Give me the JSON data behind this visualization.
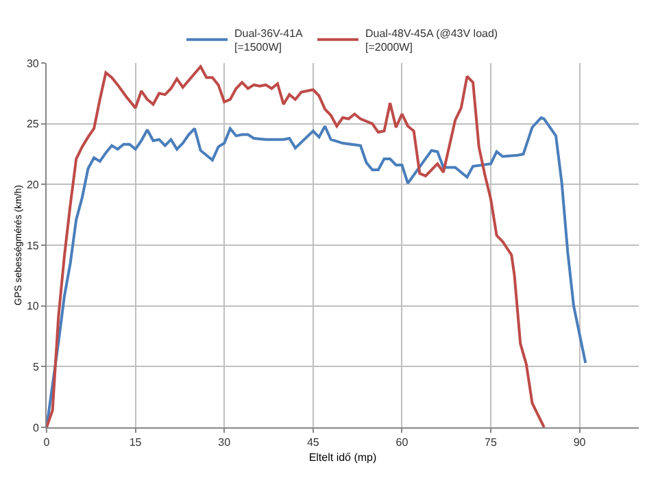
{
  "chart_data": {
    "type": "line",
    "xlabel": "Eltelt idő (mp)",
    "ylabel": "GPS sebességmérés (km/h)",
    "xlim": [
      0,
      100
    ],
    "xticks": [
      0,
      15,
      30,
      45,
      60,
      75,
      90
    ],
    "ylim": [
      0,
      30
    ],
    "yticks": [
      0,
      5,
      10,
      15,
      20,
      25,
      30
    ],
    "grid": true,
    "legend": "top",
    "marker": "none",
    "line_style": "solid",
    "series": [
      {
        "name": "Dual-36V-41A\n[=1500W]",
        "color": "#4a7ebb",
        "x": [
          0,
          1,
          2,
          3,
          4,
          5,
          6,
          7,
          8,
          9,
          10,
          11,
          12,
          13,
          14,
          15,
          16,
          17,
          18,
          19,
          20,
          21,
          22,
          23,
          24,
          25,
          26,
          28,
          29,
          30,
          31,
          32,
          33,
          34,
          35,
          37,
          40,
          41,
          42,
          45,
          46,
          47,
          48,
          50,
          53,
          54,
          55,
          56,
          57,
          58,
          59,
          60,
          61,
          65,
          66,
          67,
          69,
          71,
          72,
          75,
          76,
          77,
          79.5,
          80.5,
          82,
          83.5,
          84,
          86,
          87,
          88,
          89,
          91
        ],
        "values": [
          0,
          3.5,
          7,
          10.8,
          13.5,
          17.1,
          18.9,
          21.3,
          22.2,
          21.9,
          22.6,
          23.2,
          22.9,
          23.3,
          23.3,
          22.9,
          23.6,
          24.5,
          23.6,
          23.7,
          23.2,
          23.7,
          22.9,
          23.4,
          24.1,
          24.6,
          22.8,
          22.0,
          23.1,
          23.4,
          24.6,
          24.0,
          24.1,
          24.1,
          23.8,
          23.7,
          23.7,
          23.8,
          23.0,
          24.4,
          23.9,
          24.8,
          23.7,
          23.4,
          23.2,
          21.8,
          21.2,
          21.2,
          22.1,
          22.1,
          21.6,
          21.6,
          20.1,
          22.8,
          22.7,
          21.4,
          21.4,
          20.6,
          21.5,
          21.7,
          22.7,
          22.3,
          22.4,
          22.5,
          24.7,
          25.5,
          25.4,
          24.0,
          20.1,
          14.4,
          10.0,
          5.3
        ]
      },
      {
        "name": "Dual-48V-45A (@43V load)\n[=2000W]",
        "color": "#be4b48",
        "x": [
          0,
          1,
          2,
          3,
          4,
          5,
          6,
          7,
          8,
          9,
          10,
          11,
          12,
          13.5,
          15,
          16,
          17,
          18,
          19,
          20,
          21,
          22,
          23,
          26,
          27,
          28,
          29,
          30,
          31,
          32,
          33,
          34,
          35,
          36,
          37,
          38,
          39,
          40,
          41,
          42,
          43,
          45,
          46,
          47,
          48,
          49,
          50,
          51,
          52,
          53,
          55,
          56,
          57,
          58,
          59,
          60,
          61,
          62,
          63,
          64,
          66,
          67,
          69,
          70,
          71,
          72,
          73,
          74,
          75,
          76,
          77,
          78.5,
          79,
          80,
          81,
          82,
          84
        ],
        "values": [
          0,
          1.4,
          9.1,
          14.1,
          18.3,
          22.1,
          23.1,
          23.9,
          24.6,
          27.0,
          29.2,
          28.8,
          28.2,
          27.2,
          26.3,
          27.7,
          27.0,
          26.6,
          27.5,
          27.4,
          27.9,
          28.7,
          28.0,
          29.7,
          28.8,
          28.8,
          28.2,
          26.8,
          27.0,
          27.9,
          28.4,
          27.9,
          28.2,
          28.1,
          28.2,
          27.9,
          28.3,
          26.6,
          27.4,
          27.0,
          27.6,
          27.8,
          27.3,
          26.2,
          25.7,
          24.8,
          25.5,
          25.4,
          25.8,
          25.4,
          25.0,
          24.3,
          24.4,
          26.7,
          24.7,
          25.8,
          24.8,
          24.4,
          20.9,
          20.7,
          21.7,
          21.0,
          25.3,
          26.3,
          28.9,
          28.4,
          23.1,
          20.8,
          18.8,
          15.8,
          15.3,
          14.2,
          12.5,
          6.9,
          5.2,
          2.0,
          0
        ]
      }
    ]
  }
}
